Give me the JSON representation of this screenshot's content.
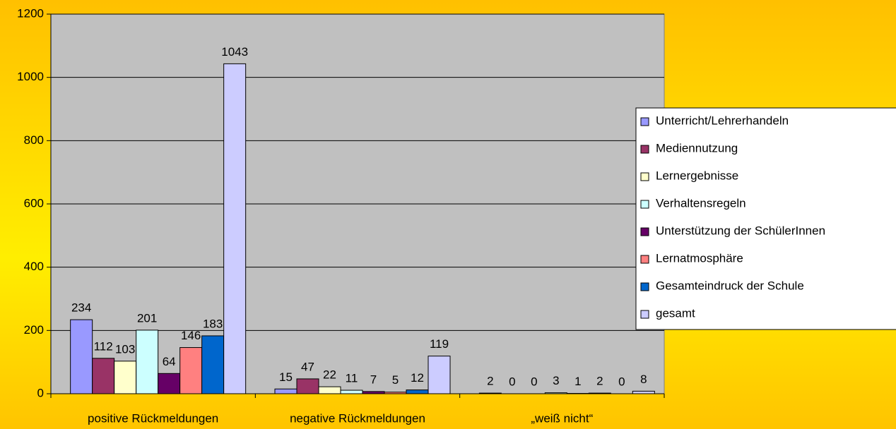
{
  "chart_data": {
    "type": "bar",
    "categories": [
      "positive Rückmeldungen",
      "negative Rückmeldungen",
      "„weiß nicht“"
    ],
    "series": [
      {
        "name": "Unterricht/Lehrerhandeln",
        "color": "#9999ff",
        "values": [
          234,
          15,
          2
        ]
      },
      {
        "name": "Mediennutzung",
        "color": "#993366",
        "values": [
          112,
          47,
          0
        ]
      },
      {
        "name": "Lernergebnisse",
        "color": "#ffffcc",
        "values": [
          103,
          22,
          0
        ]
      },
      {
        "name": "Verhaltensregeln",
        "color": "#ccffff",
        "values": [
          201,
          11,
          3
        ]
      },
      {
        "name": "Unterstützung der SchülerInnen",
        "color": "#660066",
        "values": [
          64,
          7,
          1
        ]
      },
      {
        "name": "Lernatmosphäre",
        "color": "#ff8080",
        "values": [
          146,
          5,
          2
        ]
      },
      {
        "name": "Gesamteindruck der Schule",
        "color": "#0066cc",
        "values": [
          183,
          12,
          0
        ]
      },
      {
        "name": "gesamt",
        "color": "#ccccff",
        "values": [
          1043,
          119,
          8
        ]
      }
    ],
    "ylim": [
      0,
      1200
    ],
    "yticks": [
      0,
      200,
      400,
      600,
      800,
      1000,
      1200
    ],
    "grid": true,
    "legend": "right"
  }
}
